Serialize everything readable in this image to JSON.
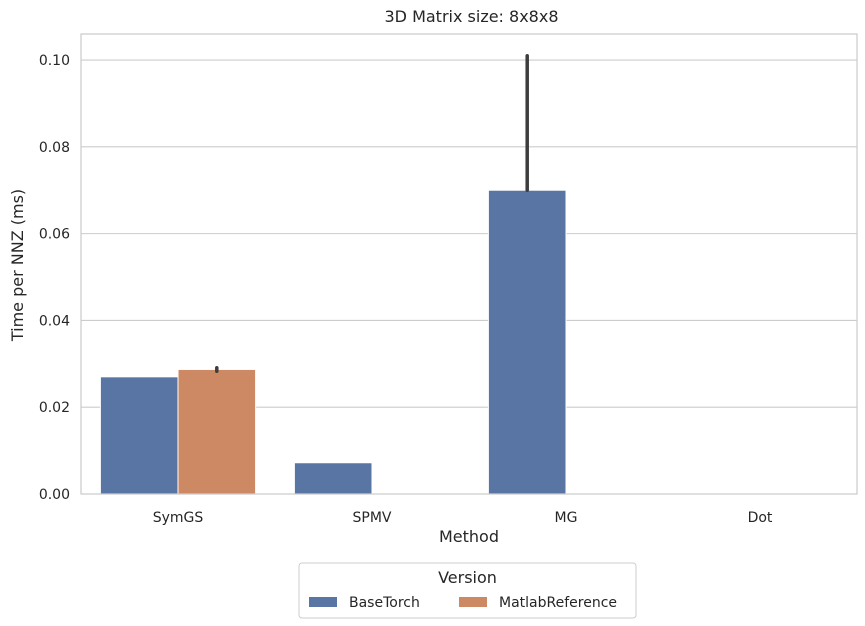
{
  "chart_data": {
    "type": "bar",
    "title": "3D Matrix size: 8x8x8",
    "xlabel": "Method",
    "ylabel": "Time per NNZ (ms)",
    "categories": [
      "SymGS",
      "SPMV",
      "MG",
      "Dot"
    ],
    "ylim": [
      0,
      0.106
    ],
    "yticks": [
      0.0,
      0.02,
      0.04,
      0.06,
      0.08,
      0.1
    ],
    "ytick_labels": [
      "0.00",
      "0.02",
      "0.04",
      "0.06",
      "0.08",
      "0.10"
    ],
    "grid": "horizontal",
    "series": [
      {
        "name": "BaseTorch",
        "color": "#5875a4",
        "values": [
          0.027,
          0.0072,
          0.07,
          0.0
        ],
        "error_low": [
          0.027,
          0.0072,
          0.07,
          0.0
        ],
        "error_high": [
          0.027,
          0.0072,
          0.101,
          0.0
        ]
      },
      {
        "name": "MatlabReference",
        "color": "#cc8963",
        "values": [
          0.0287,
          0.0,
          0.0,
          0.0
        ],
        "error_low": [
          0.0283,
          0.0,
          0.0,
          0.0
        ],
        "error_high": [
          0.0291,
          0.0,
          0.0,
          0.0
        ]
      }
    ],
    "error_bar_color": "#3d3d3d",
    "legend": {
      "title": "Version",
      "position": "bottom-center"
    }
  }
}
